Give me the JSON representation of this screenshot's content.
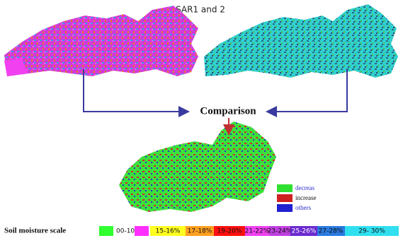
{
  "title": "SAR1 and 2",
  "comparison": "Comparison",
  "legend": [
    "decreas",
    "increase",
    "others"
  ],
  "scale": {
    "title": "Soil moisture scale",
    "labels": [
      "00-10",
      "15-16%",
      "17-18%",
      "19-20%",
      "21-22%",
      "23-24%",
      "25-26%",
      "27-28%",
      "29- 30%"
    ]
  }
}
